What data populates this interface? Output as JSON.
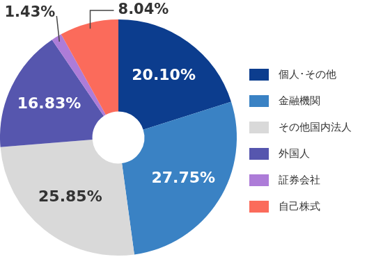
{
  "chart_data": {
    "type": "doughnut",
    "categories": [
      "個人･その他",
      "金融機関",
      "その他国内法人",
      "外国人",
      "証券会社",
      "自己株式"
    ],
    "values": [
      20.1,
      27.75,
      25.85,
      16.83,
      1.43,
      8.04
    ],
    "value_labels": [
      "20.10%",
      "27.75%",
      "25.85%",
      "16.83%",
      "1.43%",
      "8.04%"
    ],
    "colors": [
      "#0c3d8e",
      "#3a82c4",
      "#d9d9d9",
      "#5656ae",
      "#ad7cd8",
      "#fb6b5b"
    ],
    "data_labels": true,
    "legend": "right"
  }
}
